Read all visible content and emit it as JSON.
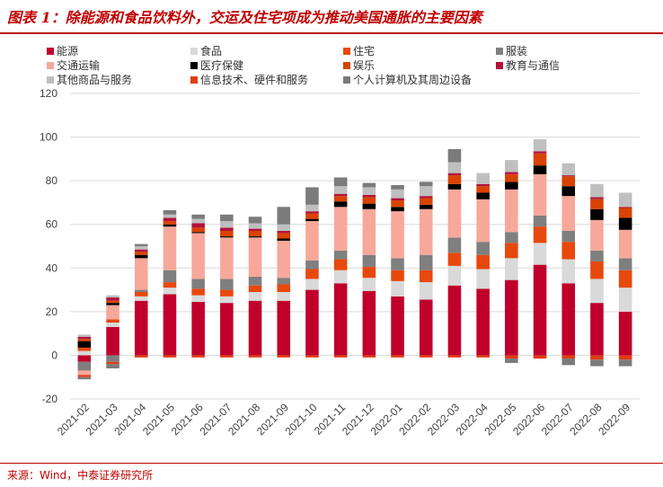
{
  "title": "图表 1：除能源和食品饮料外，交运及住宅项成为推动美国通胀的主要因素",
  "source": "来源：Wind，中泰证券研究所",
  "colors": {
    "title": "#c00000",
    "axis_text": "#404040",
    "grid": "#d9d9d9"
  },
  "chart_data": {
    "type": "bar",
    "stacked": true,
    "grid": true,
    "legend_position": "top",
    "ylim": [
      -20,
      120
    ],
    "yticks": [
      -20,
      0,
      20,
      40,
      60,
      80,
      100,
      120
    ],
    "categories": [
      "2021-02",
      "2021-03",
      "2021-04",
      "2021-05",
      "2021-06",
      "2021-07",
      "2021-08",
      "2021-09",
      "2021-10",
      "2021-11",
      "2021-12",
      "2022-01",
      "2022-02",
      "2022-03",
      "2022-04",
      "2022-05",
      "2022-06",
      "2022-07",
      "2022-08",
      "2022-09"
    ],
    "series": [
      {
        "name": "能源",
        "color": "#c0002b",
        "values": [
          -3,
          13,
          25,
          28,
          24.5,
          24,
          25,
          25,
          30,
          33,
          29.5,
          27,
          25.5,
          32,
          30.5,
          34.5,
          41.5,
          33,
          24,
          20
        ]
      },
      {
        "name": "食品",
        "color": "#d9d9d9",
        "values": [
          2,
          2,
          2,
          3,
          3,
          3,
          4,
          4,
          5,
          6,
          6,
          7,
          8,
          9,
          9,
          10,
          10,
          11,
          11,
          11
        ]
      },
      {
        "name": "住宅",
        "color": "#e8480c",
        "values": [
          1.5,
          1.5,
          2,
          2.5,
          3,
          3,
          3,
          3.5,
          4.5,
          5,
          5,
          5,
          5.5,
          6,
          6.5,
          7,
          7.5,
          8,
          8,
          8
        ]
      },
      {
        "name": "服装",
        "color": "#7f7f7f",
        "values": [
          -4,
          -3,
          1,
          5.5,
          4.5,
          5,
          4,
          3,
          4,
          4,
          5.5,
          5.5,
          7,
          7,
          6,
          5,
          5,
          5,
          5,
          5.5
        ]
      },
      {
        "name": "交通运输",
        "color": "#f7a89a",
        "values": [
          -2,
          6.5,
          14.5,
          20,
          21,
          19,
          18,
          17,
          18,
          20,
          21,
          21.5,
          21,
          22,
          19.5,
          19.5,
          19,
          16,
          14,
          13
        ]
      },
      {
        "name": "医疗保健",
        "color": "#000000",
        "values": [
          3,
          1,
          1.5,
          1,
          0.5,
          0.5,
          0.5,
          1,
          1,
          2.5,
          2.5,
          2,
          2,
          2.5,
          3,
          3.5,
          4,
          4.5,
          5,
          5.5
        ]
      },
      {
        "name": "娱乐",
        "color": "#d94200",
        "values": [
          1,
          1,
          1.5,
          1.5,
          2,
          2.5,
          2.5,
          2.5,
          2.5,
          2.5,
          3,
          3,
          3,
          4,
          3,
          3.5,
          5.5,
          4.5,
          4.5,
          4.5
        ]
      },
      {
        "name": "教育与通信",
        "color": "#b0133c",
        "values": [
          1,
          1.5,
          1,
          1.5,
          2,
          1.5,
          1,
          1,
          1,
          1,
          1,
          1,
          1,
          1,
          1,
          1,
          1,
          0.5,
          1,
          0.5
        ]
      },
      {
        "name": "其他商品与服务",
        "color": "#bfbfbf",
        "values": [
          1,
          1,
          1.5,
          1.5,
          2,
          3,
          2.5,
          3,
          3,
          3.5,
          3.5,
          4,
          4.5,
          5,
          5,
          5.5,
          5.5,
          5.5,
          6,
          6.5
        ]
      },
      {
        "name": "信息技术、硬件和服务",
        "color": "#e03c14",
        "values": [
          -1,
          -1,
          -1,
          -1,
          -1,
          -1,
          -1,
          -1,
          -1,
          -1,
          -1,
          -1,
          -1,
          -1,
          -1,
          -1.5,
          -1.5,
          -1.5,
          -2,
          -2
        ]
      },
      {
        "name": "个人计算机及其周边设备",
        "color": "#7b7b7b",
        "values": [
          -1,
          -2,
          1,
          2,
          2,
          3,
          3,
          8,
          8,
          4,
          2,
          2,
          2,
          6,
          0,
          -2,
          0,
          -3,
          -3,
          -3
        ]
      }
    ]
  }
}
